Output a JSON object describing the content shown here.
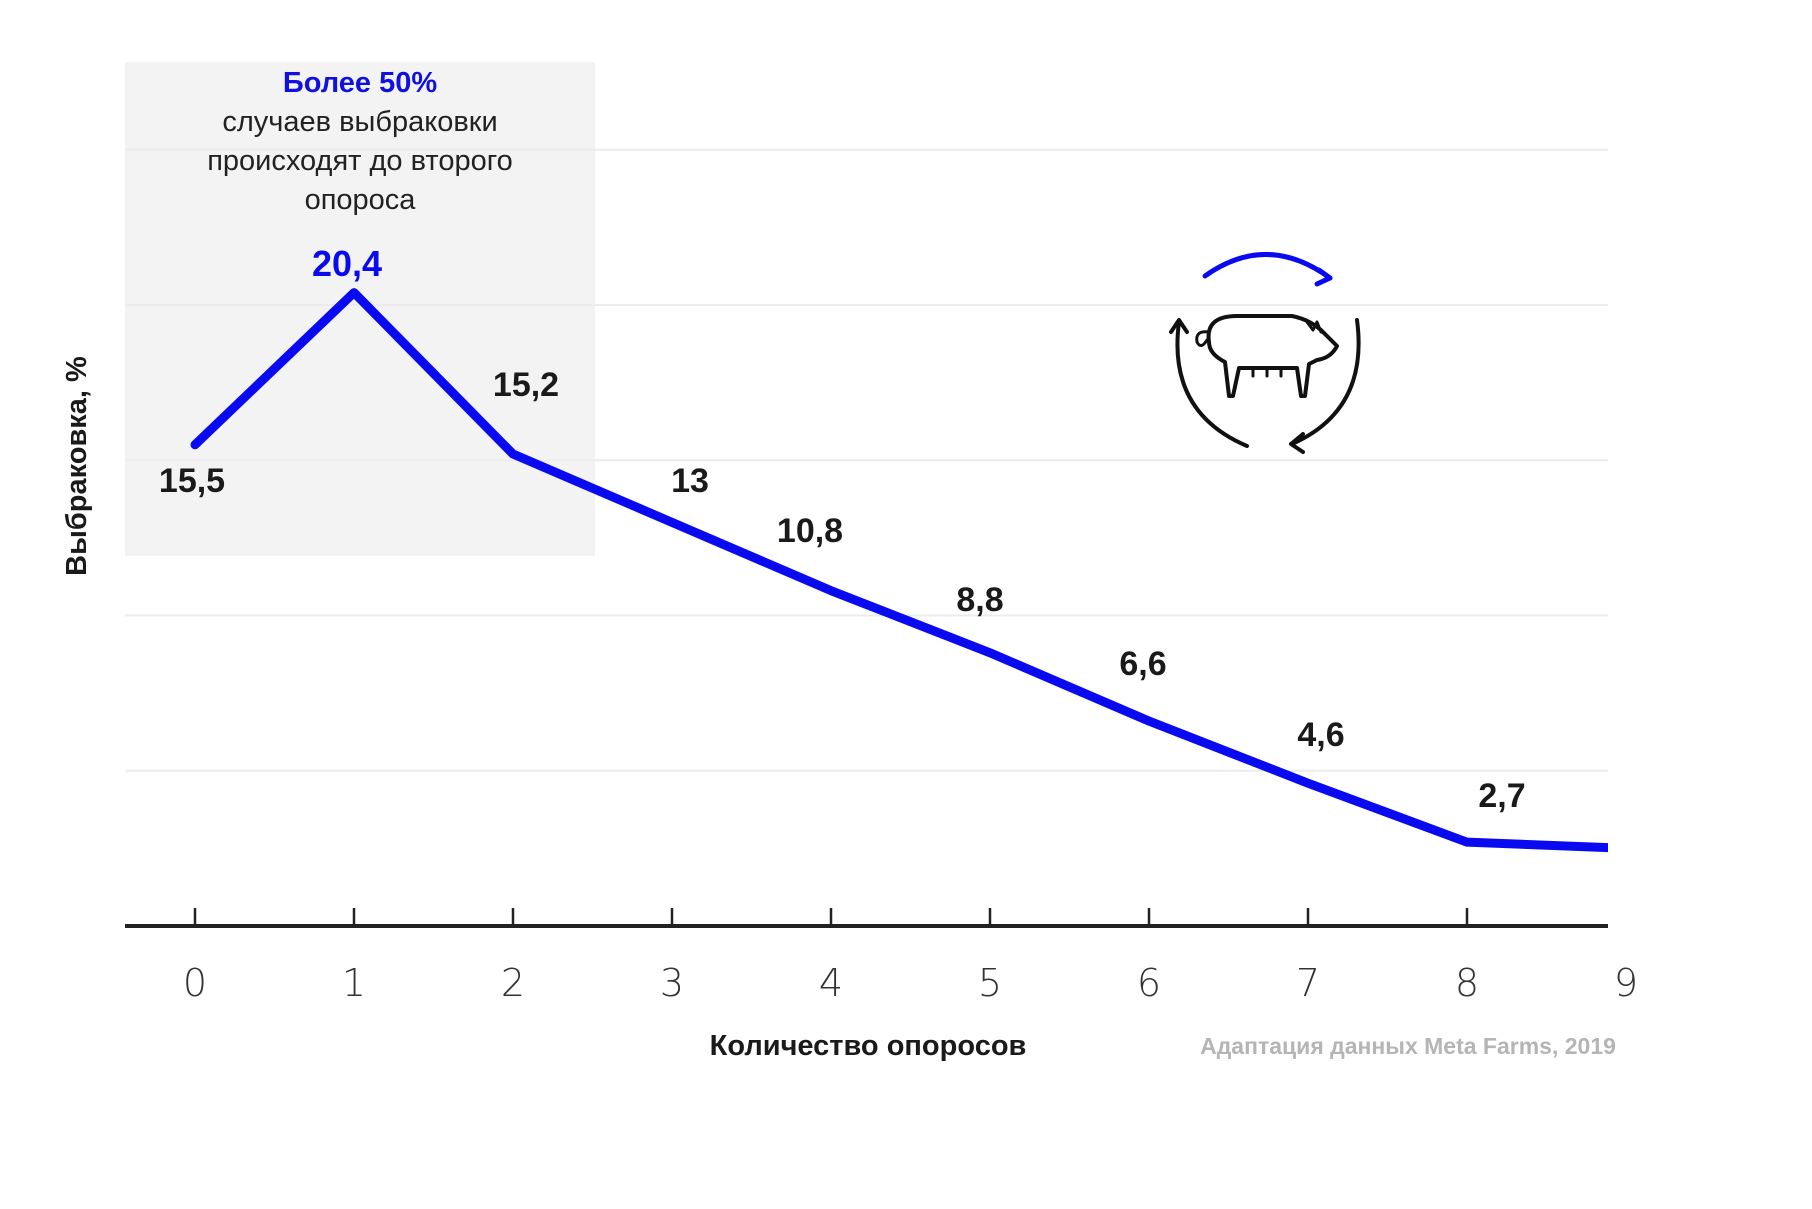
{
  "chart_data": {
    "type": "line",
    "title": "",
    "xlabel": "Количество опоросов",
    "ylabel": "Выбраковка, %",
    "x": [
      0,
      1,
      2,
      3,
      4,
      5,
      6,
      7,
      8,
      9
    ],
    "xticks": [
      "0",
      "1",
      "2",
      "3",
      "4",
      "5",
      "6",
      "7",
      "8",
      "9"
    ],
    "series": [
      {
        "name": "Выбраковка",
        "values": [
          15.5,
          20.4,
          15.2,
          13,
          10.8,
          8.8,
          6.6,
          4.6,
          2.7,
          2.5
        ],
        "color": "#0a0af0"
      }
    ],
    "data_labels": [
      "15,5",
      "20,4",
      "15,2",
      "13",
      "10,8",
      "8,8",
      "6,6",
      "4,6",
      "2,7"
    ],
    "highlight_label_index": 1,
    "ylim": [
      0,
      25
    ],
    "xlim": [
      -0.43,
      9.0
    ],
    "grid": true,
    "gridlines_y": [
      5,
      10,
      15,
      20,
      25
    ],
    "highlight_region": {
      "x_range": [
        -0.43,
        2.5
      ]
    },
    "annotation": {
      "headline": "Более 50%",
      "lines": [
        "случаев выбраковки",
        "происходят до второго",
        "опороса"
      ]
    },
    "source": "Адаптация данных Meta Farms, 2019",
    "icon": "pig-cycle-icon",
    "accent_color": "#0a0af0"
  }
}
